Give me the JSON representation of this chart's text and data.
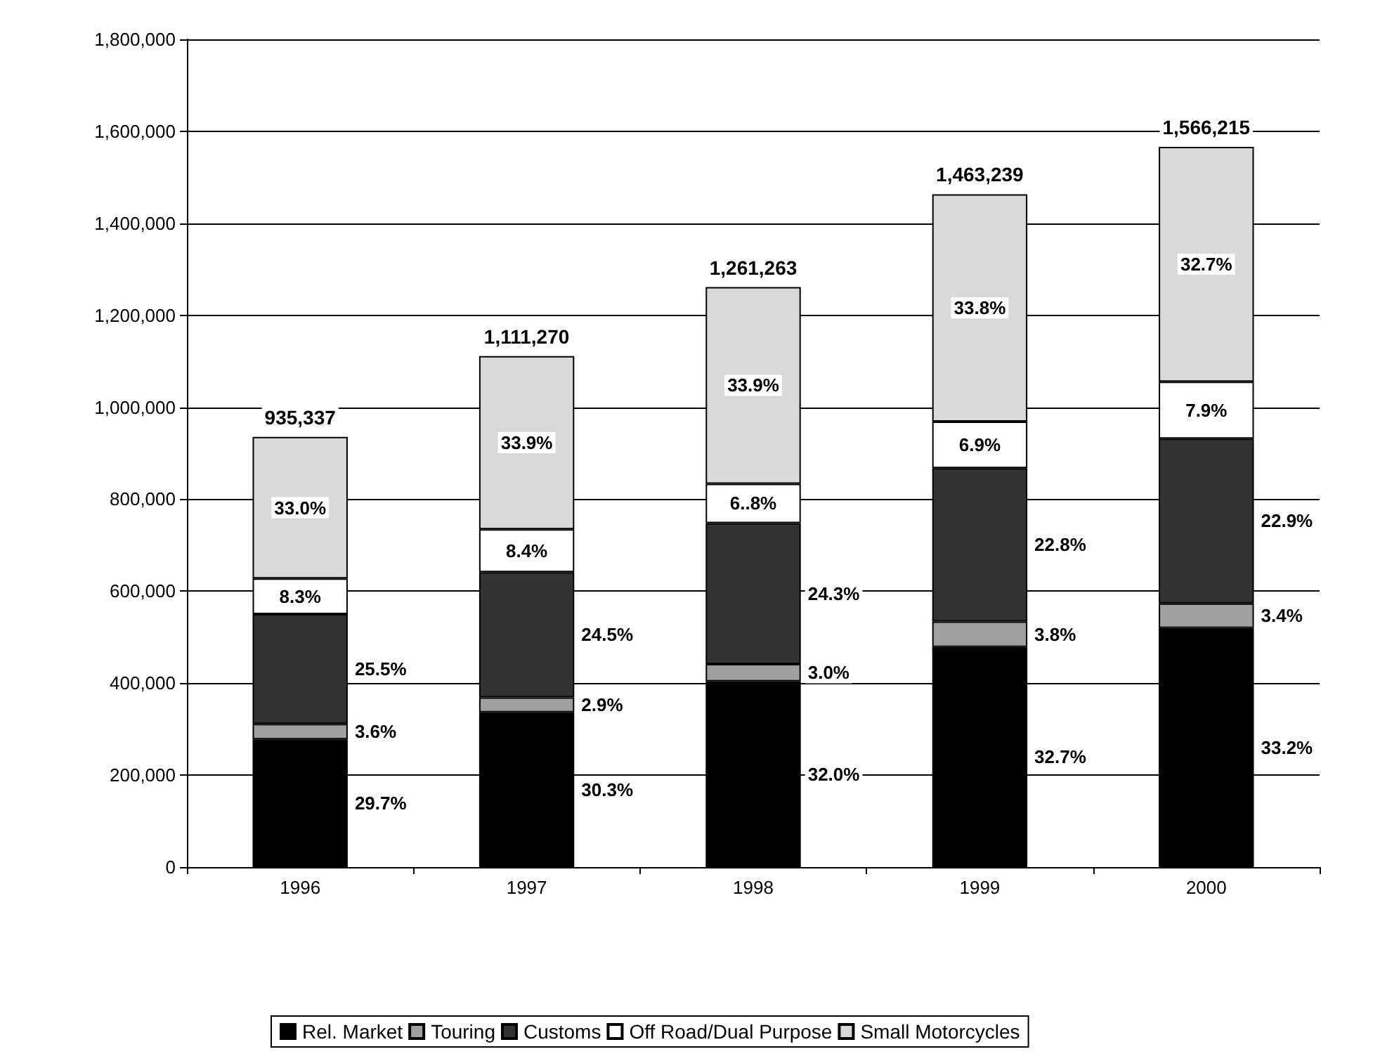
{
  "chart_data": {
    "type": "bar",
    "stacked": true,
    "categories": [
      "1996",
      "1997",
      "1998",
      "1999",
      "2000"
    ],
    "series": [
      {
        "name": "Rel. Market",
        "color": "#000000",
        "values": [
          277795,
          336715,
          403604,
          478479,
          519983
        ]
      },
      {
        "name": "Touring",
        "color": "#a0a0a0",
        "values": [
          33672,
          32227,
          37838,
          55603,
          53251
        ]
      },
      {
        "name": "Customs",
        "color": "#333333",
        "values": [
          238511,
          272261,
          306487,
          333618,
          358663
        ]
      },
      {
        "name": "Off Road/Dual Purpose",
        "color": "#ffffff",
        "values": [
          77633,
          93347,
          85766,
          100964,
          123731
        ]
      },
      {
        "name": "Small Motorcycles",
        "color": "#d9d9d9",
        "values": [
          307726,
          376720,
          427568,
          494575,
          510587
        ]
      }
    ],
    "annotations": [
      "29.7%",
      "30.3%",
      "32.0%",
      "32.7%",
      "33.2%",
      "3.6%",
      "2.9%",
      "3.0%",
      "3.8%",
      "3.4%",
      "25.5%",
      "24.5%",
      "24.3%",
      "22.8%",
      "22.9%",
      "8.3%",
      "8.4%",
      "6..8%",
      "6.9%",
      "7.9%",
      "33.0%",
      "33.9%",
      "33.9%",
      "33.8%",
      "32.7%"
    ],
    "totals": [
      "935,337",
      "1,111,270",
      "1,261,263",
      "1,463,239",
      "1,566,215"
    ],
    "ylim": [
      0,
      1800000
    ],
    "yticks": [
      0,
      {
        "value": 200000,
        "label": "200,000"
      },
      {
        "value": 400000,
        "label": "400,000"
      },
      {
        "value": 600000,
        "label": "600,000"
      },
      {
        "value": 800000,
        "label": "800,000"
      },
      {
        "value": 1000000,
        "label": "1,000,000"
      },
      {
        "value": 1200000,
        "label": "1,200,000"
      },
      {
        "value": 1400000,
        "label": "1,400,000"
      },
      {
        "value": 1600000,
        "label": "1,600,000"
      },
      {
        "value": 1800000,
        "label": "1,800,000"
      }
    ],
    "grid": "y",
    "legend": "bottom"
  }
}
